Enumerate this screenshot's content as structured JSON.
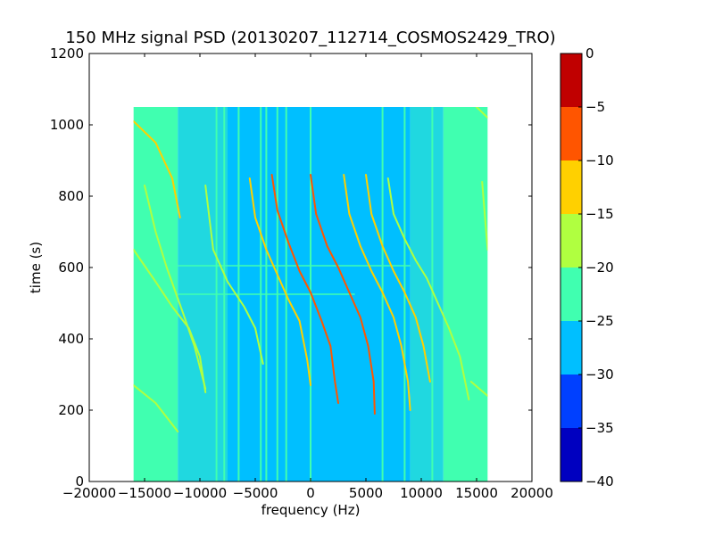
{
  "chart_data": {
    "type": "heatmap",
    "title": "150 MHz signal PSD (20130207_112714_COSMOS2429_TRO)",
    "xlabel": "frequency (Hz)",
    "ylabel": "time (s)",
    "xlim": [
      -20000,
      20000
    ],
    "ylim": [
      0,
      1200
    ],
    "xticks": [
      -20000,
      -15000,
      -10000,
      -5000,
      0,
      5000,
      10000,
      15000,
      20000
    ],
    "xtick_labels": [
      "−20000",
      "−15000",
      "−10000",
      "−5000",
      "0",
      "5000",
      "10000",
      "15000",
      "20000"
    ],
    "yticks": [
      0,
      200,
      400,
      600,
      800,
      1000,
      1200
    ],
    "ytick_labels": [
      "0",
      "200",
      "400",
      "600",
      "800",
      "1000",
      "1200"
    ],
    "data_extent": {
      "x": [
        -16000,
        16000
      ],
      "y": [
        0,
        1050
      ]
    },
    "colorbar": {
      "levels": [
        -40,
        -35,
        -30,
        -25,
        -20,
        -15,
        -10,
        -5,
        0
      ],
      "tick_labels": [
        "−40",
        "−35",
        "−30",
        "−25",
        "−20",
        "−15",
        "−10",
        "−5",
        "0"
      ],
      "colors": [
        "#0000c0",
        "#0040ff",
        "#00bfff",
        "#40ffb0",
        "#b0ff40",
        "#ffd000",
        "#ff5500",
        "#c00000"
      ]
    },
    "background_bands": [
      {
        "x0": -16000,
        "x1": -12000,
        "color": "#40ffb0"
      },
      {
        "x0": -12000,
        "x1": -7500,
        "color": "#20d8e0"
      },
      {
        "x0": -7500,
        "x1": 9000,
        "color": "#00bfff"
      },
      {
        "x0": 9000,
        "x1": 12000,
        "color": "#20d8e0"
      },
      {
        "x0": 12000,
        "x1": 16000,
        "color": "#40ffb0"
      }
    ],
    "vertical_lines": [
      {
        "x": -8500,
        "y0": 0,
        "y1": 1050,
        "color": "#40ffb0"
      },
      {
        "x": -7800,
        "y0": 0,
        "y1": 1050,
        "color": "#40ffb0"
      },
      {
        "x": -6500,
        "y0": 0,
        "y1": 1050,
        "color": "#40ffb0"
      },
      {
        "x": -4500,
        "y0": 0,
        "y1": 1050,
        "color": "#40ffb0"
      },
      {
        "x": -4000,
        "y0": 0,
        "y1": 1050,
        "color": "#40ffb0"
      },
      {
        "x": -3000,
        "y0": 0,
        "y1": 1050,
        "color": "#40ffb0"
      },
      {
        "x": -2200,
        "y0": 0,
        "y1": 1050,
        "color": "#40ffb0"
      },
      {
        "x": 0,
        "y0": 0,
        "y1": 1050,
        "color": "#40ffb0"
      },
      {
        "x": 6500,
        "y0": 0,
        "y1": 1050,
        "color": "#40ffb0"
      },
      {
        "x": 8500,
        "y0": 0,
        "y1": 1050,
        "color": "#40ffb0"
      },
      {
        "x": 11000,
        "y0": 0,
        "y1": 1050,
        "color": "#40ffb0"
      },
      {
        "x": 14500,
        "y0": 0,
        "y1": 1050,
        "color": "#40ffb0"
      }
    ],
    "horizontal_lines": [
      {
        "y": 605,
        "x0": -12000,
        "x1": 9000,
        "color": "#40ffb0"
      },
      {
        "y": 525,
        "x0": -12000,
        "x1": 4000,
        "color": "#40ffb0"
      }
    ],
    "series": [
      {
        "color": "#ffd000",
        "points": [
          [
            -16000,
            1010
          ],
          [
            -14000,
            950
          ],
          [
            -12500,
            850
          ],
          [
            -11800,
            740
          ]
        ]
      },
      {
        "color": "#b0ff40",
        "points": [
          [
            -16000,
            650
          ],
          [
            -14000,
            560
          ],
          [
            -12500,
            490
          ],
          [
            -11000,
            430
          ],
          [
            -10000,
            350
          ],
          [
            -9500,
            250
          ]
        ]
      },
      {
        "color": "#b0ff40",
        "points": [
          [
            -15000,
            830
          ],
          [
            -14000,
            700
          ],
          [
            -13000,
            600
          ],
          [
            -11500,
            470
          ],
          [
            -10500,
            380
          ],
          [
            -9500,
            260
          ]
        ]
      },
      {
        "color": "#b0ff40",
        "points": [
          [
            -9500,
            830
          ],
          [
            -8800,
            650
          ],
          [
            -7500,
            560
          ],
          [
            -6000,
            490
          ],
          [
            -5000,
            430
          ],
          [
            -4300,
            330
          ]
        ]
      },
      {
        "color": "#ffd000",
        "points": [
          [
            -5500,
            850
          ],
          [
            -5000,
            740
          ],
          [
            -4000,
            650
          ],
          [
            -3000,
            580
          ],
          [
            -2000,
            510
          ],
          [
            -1000,
            450
          ],
          [
            -300,
            340
          ],
          [
            0,
            270
          ]
        ]
      },
      {
        "color": "#ff5500",
        "points": [
          [
            -3500,
            860
          ],
          [
            -3000,
            760
          ],
          [
            -2000,
            670
          ],
          [
            -1000,
            590
          ],
          [
            0,
            530
          ],
          [
            1000,
            450
          ],
          [
            1800,
            380
          ],
          [
            2200,
            280
          ],
          [
            2500,
            220
          ]
        ]
      },
      {
        "color": "#ff5500",
        "points": [
          [
            0,
            860
          ],
          [
            500,
            750
          ],
          [
            1500,
            660
          ],
          [
            2500,
            600
          ],
          [
            3500,
            530
          ],
          [
            4500,
            460
          ],
          [
            5200,
            380
          ],
          [
            5700,
            280
          ],
          [
            5800,
            190
          ]
        ]
      },
      {
        "color": "#ffd000",
        "points": [
          [
            3000,
            860
          ],
          [
            3500,
            750
          ],
          [
            4500,
            660
          ],
          [
            5500,
            590
          ],
          [
            6500,
            530
          ],
          [
            7500,
            460
          ],
          [
            8200,
            380
          ],
          [
            8800,
            280
          ],
          [
            9000,
            200
          ]
        ]
      },
      {
        "color": "#ffd000",
        "points": [
          [
            5000,
            860
          ],
          [
            5500,
            750
          ],
          [
            6500,
            660
          ],
          [
            7500,
            590
          ],
          [
            8500,
            530
          ],
          [
            9500,
            460
          ],
          [
            10200,
            380
          ],
          [
            10800,
            280
          ]
        ]
      },
      {
        "color": "#b0ff40",
        "points": [
          [
            7000,
            850
          ],
          [
            7500,
            750
          ],
          [
            8500,
            680
          ],
          [
            9500,
            620
          ],
          [
            10500,
            570
          ],
          [
            11500,
            500
          ],
          [
            12500,
            430
          ],
          [
            13500,
            350
          ],
          [
            14300,
            230
          ]
        ]
      },
      {
        "color": "#b0ff40",
        "points": [
          [
            -16000,
            270
          ],
          [
            -14000,
            220
          ],
          [
            -12000,
            140
          ]
        ]
      },
      {
        "color": "#b0ff40",
        "points": [
          [
            15000,
            1050
          ],
          [
            16000,
            1020
          ]
        ]
      },
      {
        "color": "#b0ff40",
        "points": [
          [
            15500,
            840
          ],
          [
            16000,
            650
          ]
        ]
      },
      {
        "color": "#b0ff40",
        "points": [
          [
            14500,
            280
          ],
          [
            16000,
            240
          ]
        ]
      }
    ]
  }
}
